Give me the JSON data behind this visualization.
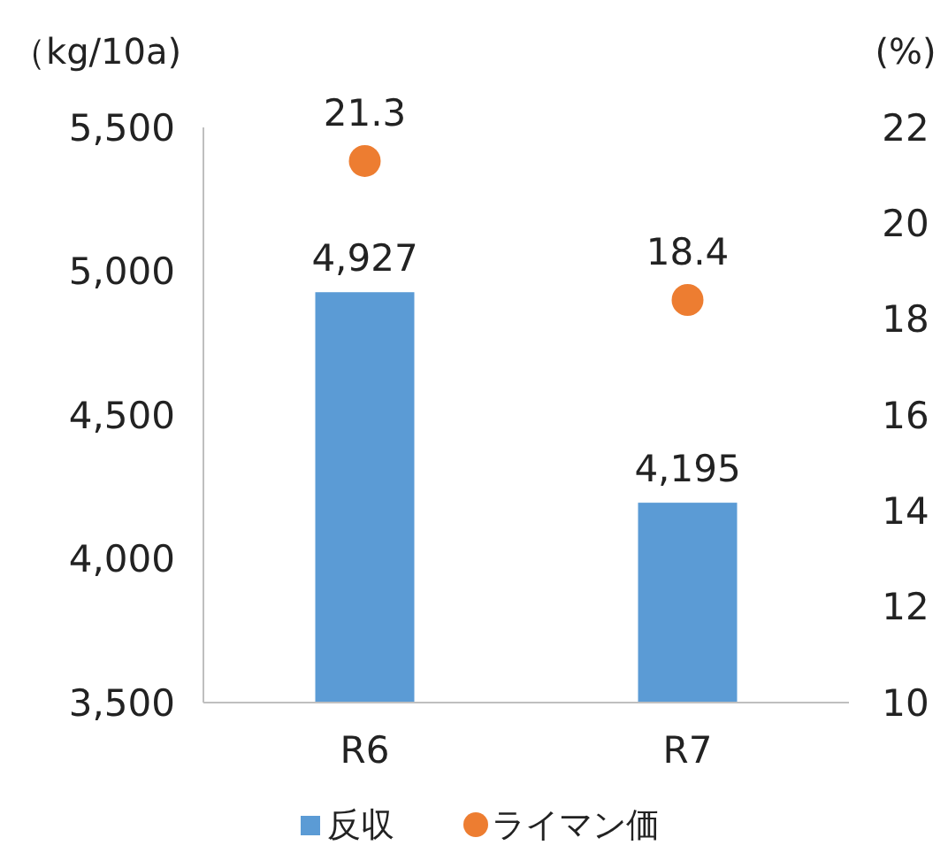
{
  "chart_data": {
    "type": "bar",
    "categories": [
      "R6",
      "R7"
    ],
    "ylabel": "（kg/10a)",
    "y2label": "(%)",
    "ylim": [
      3500,
      5500
    ],
    "yticks": [
      {
        "value": 3500,
        "label": "3,500"
      },
      {
        "value": 4000,
        "label": "4,000"
      },
      {
        "value": 4500,
        "label": "4,500"
      },
      {
        "value": 5000,
        "label": "5,000"
      },
      {
        "value": 5500,
        "label": "5,500"
      }
    ],
    "y2lim": [
      10,
      22
    ],
    "y2ticks": [
      10,
      12,
      14,
      16,
      18,
      20,
      22
    ],
    "series": [
      {
        "name": "反収",
        "color": "#5b9bd5",
        "values": [
          4927,
          4195
        ],
        "value_labels": [
          "4,927",
          "4,195"
        ]
      },
      {
        "name": "ライマン価",
        "type": "scatter",
        "axis": "y2",
        "marker": "circle",
        "color": "#ed7d31",
        "values": [
          21.3,
          18.4
        ],
        "value_labels": [
          "21.3",
          "18.4"
        ]
      }
    ],
    "legend": "bottom",
    "grid": false
  }
}
